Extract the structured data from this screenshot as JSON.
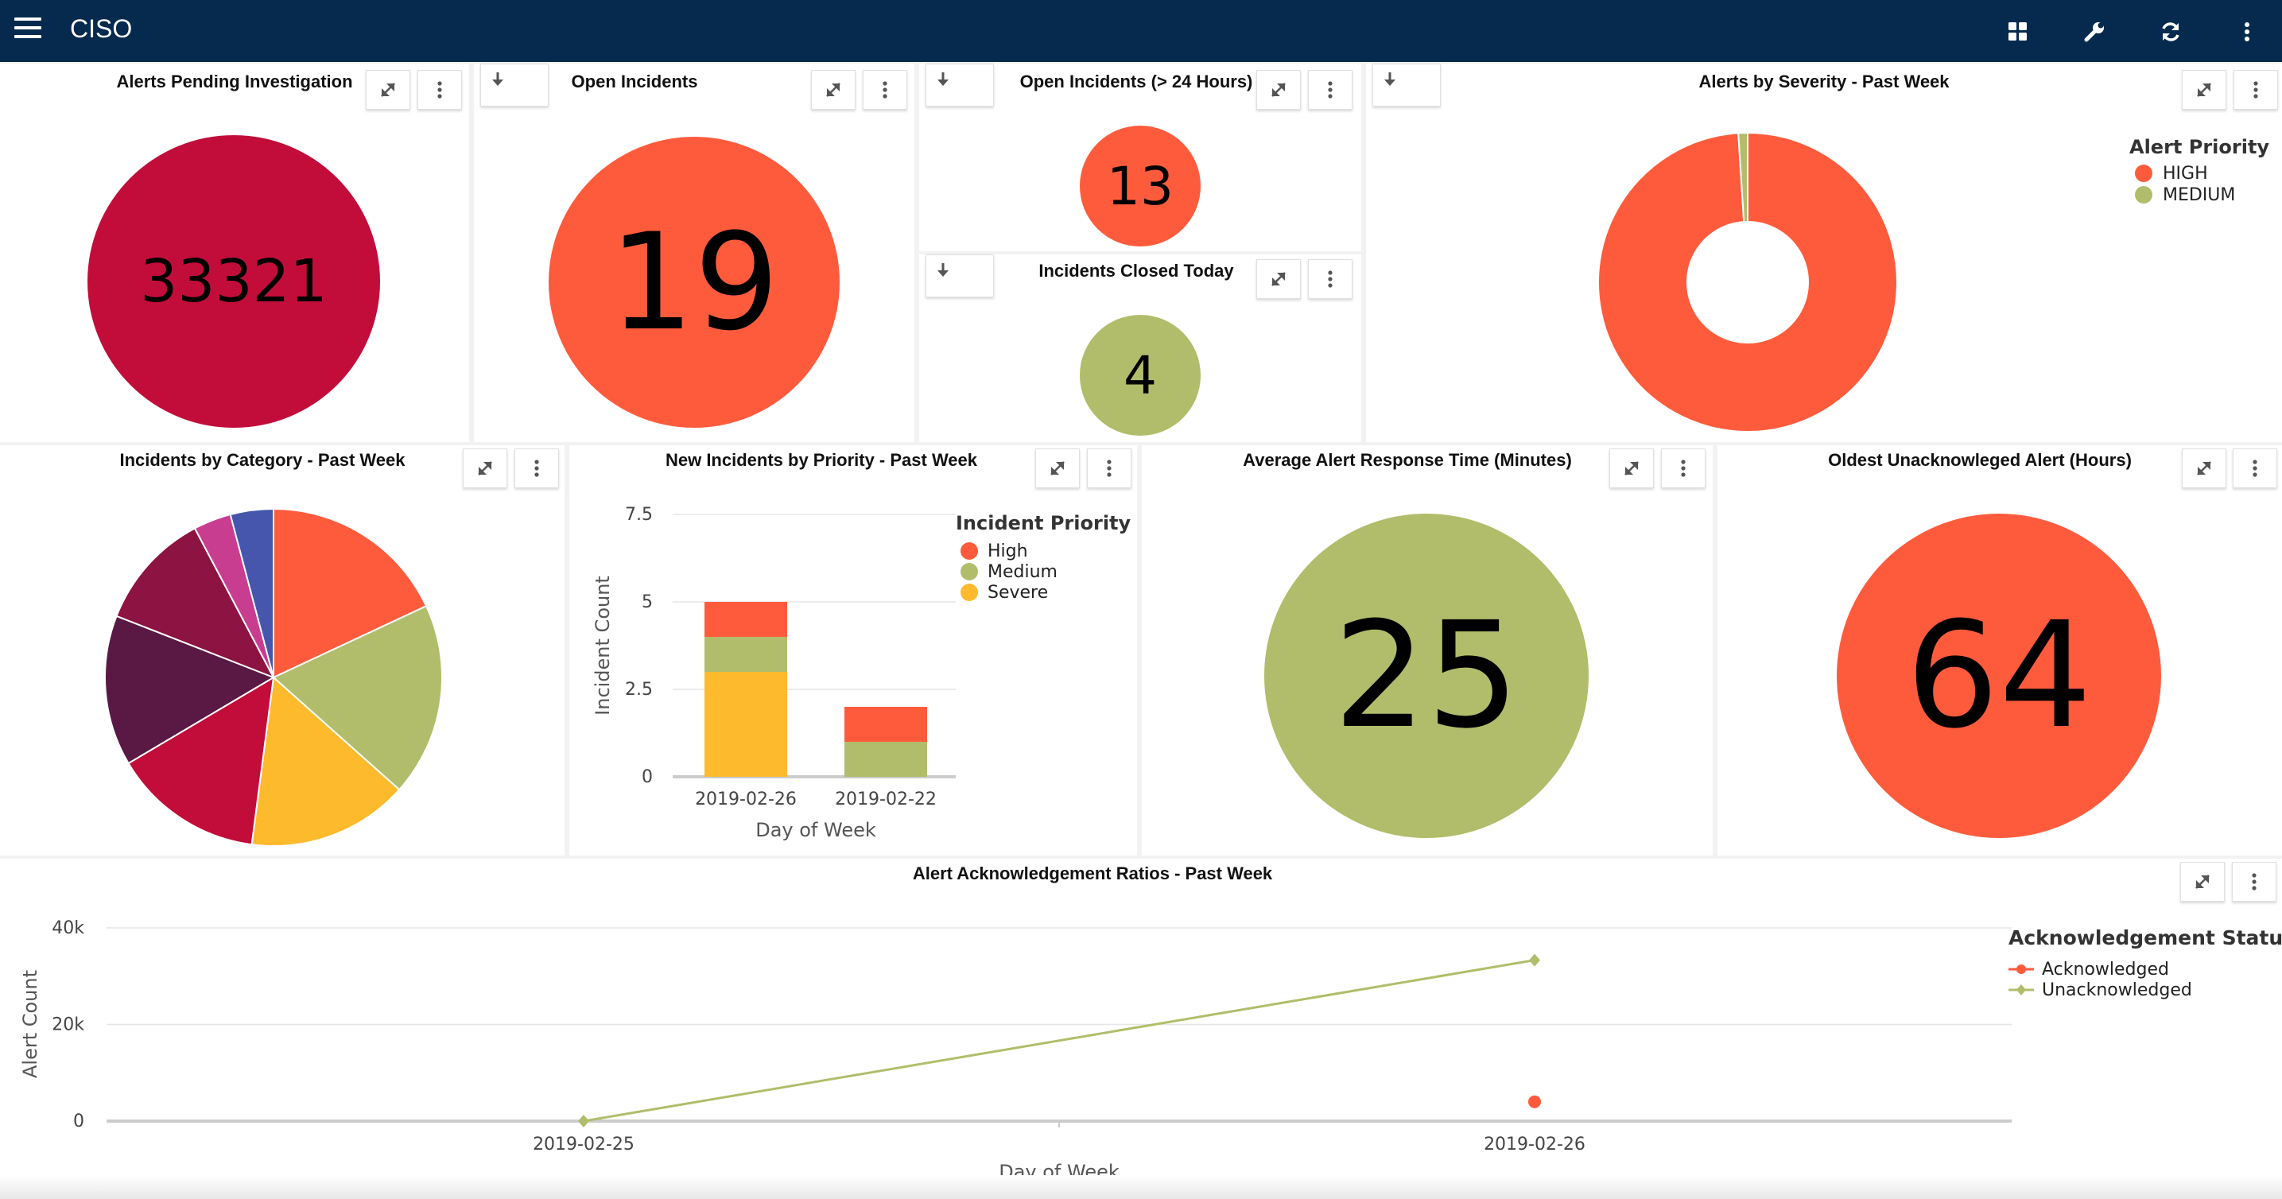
{
  "app": {
    "title": "CISO"
  },
  "colors": {
    "navbar": "#062a4e",
    "high": "#fe5b3c",
    "medium": "#b1bd6a",
    "severe": "#feba2d",
    "crimson": "#c20d3a"
  },
  "icons": [
    "menu-icon",
    "grid-icon",
    "wrench-icon",
    "refresh-icon",
    "more-vertical-icon",
    "expand-icon",
    "download-icon"
  ],
  "panels": {
    "alerts_pending": {
      "title": "Alerts Pending Investigation",
      "value": "33321"
    },
    "open_incidents": {
      "title": "Open Incidents",
      "value": "19"
    },
    "open_incidents_24h": {
      "title": "Open Incidents (> 24 Hours)",
      "value": "13"
    },
    "closed_today": {
      "title": "Incidents Closed Today",
      "value": "4"
    },
    "alerts_by_severity": {
      "title": "Alerts by Severity - Past Week",
      "legend_title": "Alert Priority"
    },
    "incidents_by_category": {
      "title": "Incidents by Category - Past Week"
    },
    "new_incidents_priority": {
      "title": "New Incidents by Priority - Past Week",
      "legend_title": "Incident Priority"
    },
    "avg_response": {
      "title": "Average Alert Response Time (Minutes)",
      "value": "25"
    },
    "oldest_unack": {
      "title": "Oldest Unacknowleged Alert (Hours)",
      "value": "64"
    },
    "ack_ratios": {
      "title": "Alert Acknowledgement Ratios - Past Week",
      "legend_title": "Acknowledgement Status"
    }
  },
  "chart_data": [
    {
      "type": "pie",
      "title": "Alerts by Severity - Past Week",
      "legend_title": "Alert Priority",
      "categories": [
        "HIGH",
        "MEDIUM"
      ],
      "values": [
        99,
        1
      ],
      "colors": [
        "#fe5b3c",
        "#b1bd6a"
      ],
      "donut": true
    },
    {
      "type": "pie",
      "title": "Incidents by Category - Past Week",
      "values": [
        17.5,
        18,
        15,
        14,
        14,
        11,
        3.5,
        4
      ],
      "colors": [
        "#fe5b3c",
        "#b1bd6a",
        "#feba2d",
        "#c20d3a",
        "#5a1944",
        "#8d1342",
        "#c93d90",
        "#4556ac"
      ]
    },
    {
      "type": "bar",
      "stacked": true,
      "title": "New Incidents by Priority - Past Week",
      "legend_title": "Incident Priority",
      "categories": [
        "2019-02-26",
        "2019-02-22"
      ],
      "series": [
        {
          "name": "Severe",
          "values": [
            3,
            0
          ],
          "color": "#feba2d"
        },
        {
          "name": "Medium",
          "values": [
            1,
            1
          ],
          "color": "#b1bd6a"
        },
        {
          "name": "High",
          "values": [
            1,
            1
          ],
          "color": "#fe5b3c"
        }
      ],
      "xlabel": "Day of Week",
      "ylabel": "Incident Count",
      "ylim": [
        0,
        7.5
      ],
      "yticks": [
        "0",
        "2.5",
        "5",
        "7.5"
      ],
      "grid": true
    },
    {
      "type": "line",
      "title": "Alert Acknowledgement Ratios - Past Week",
      "legend_title": "Acknowledgement Status",
      "x": [
        "2019-02-25",
        "2019-02-26"
      ],
      "series": [
        {
          "name": "Acknowledged",
          "values": [
            null,
            4000
          ],
          "color": "#fe5b3c"
        },
        {
          "name": "Unacknowledged",
          "values": [
            0,
            33321
          ],
          "color": "#b1bd6a"
        }
      ],
      "xlabel": "Day of Week",
      "ylabel": "Alert Count",
      "ylim": [
        0,
        40000
      ],
      "yticks": [
        "0",
        "20k",
        "40k"
      ],
      "grid": true
    }
  ]
}
